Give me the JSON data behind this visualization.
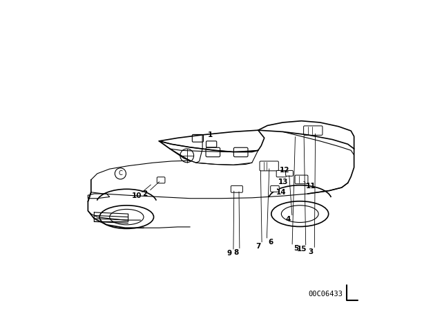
{
  "bg_color": "#ffffff",
  "line_color": "#000000",
  "label_color": "#000000",
  "part_number_text": "00C06433",
  "figsize": [
    6.4,
    4.48
  ],
  "dpi": 100
}
